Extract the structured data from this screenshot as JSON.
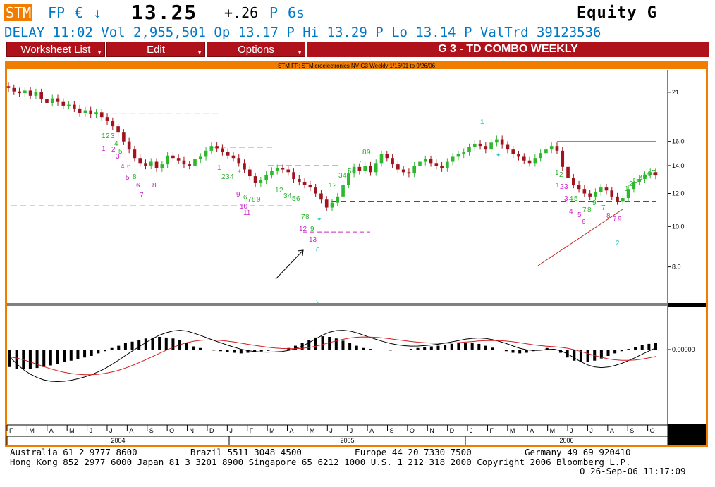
{
  "header": {
    "ticker": "STM",
    "exchange": "FP",
    "currency": "€",
    "arrow": "↓",
    "price": "13.25",
    "change": "+.26",
    "change_flag": "P",
    "lot": "6s",
    "security_type": "Equity",
    "function_key": "G"
  },
  "quote_line": "DELAY 11:02 Vol 2,955,501 Op 13.17 P Hi 13.29 P Lo 13.14 P ValTrd 39123536",
  "menu": {
    "worksheet_list": "Worksheet List",
    "edit": "Edit",
    "options": "Options",
    "title": "G  3 - TD COMBO WEEKLY"
  },
  "chart_title": "STM FP: STMicroelectronics NV G3 Weekly 1/16/01 to 9/26/06",
  "colors": {
    "accent": "#f07c00",
    "menu": "#b0121b",
    "blue_text": "#0078c8",
    "up_candle": "#2db82d",
    "down_candle": "#a0141e",
    "count_green": "#28b428",
    "count_magenta": "#c828c8",
    "count_cyan": "#28c8c8"
  },
  "footer": {
    "line1": "Australia 61 2 9777 8600          Brazil 5511 3048 4500          Europe 44 20 7330 7500          Germany 49 69 920410",
    "line2": "Hong Kong 852 2977 6000 Japan 81 3 3201 8900 Singapore 65 6212 1000 U.S. 1 212 318 2000 Copyright 2006 Bloomberg L.P.",
    "line3": "0 26-Sep-06 11:17:09"
  },
  "chart_data": {
    "type": "candlestick",
    "price_axis": {
      "ticks": [
        "21",
        "16.0",
        "14.0",
        "12.0",
        "10.0",
        "8.0"
      ],
      "tick_values": [
        21,
        16,
        14,
        12,
        10,
        8
      ],
      "scale": "log"
    },
    "osc_axis": {
      "ticks": [
        "0.00000"
      ],
      "tick_values": [
        0
      ]
    },
    "x_months": [
      "F",
      "M",
      "A",
      "M",
      "J",
      "J",
      "A",
      "S",
      "O",
      "N",
      "D",
      "J",
      "F",
      "M",
      "A",
      "M",
      "J",
      "J",
      "A",
      "S",
      "O",
      "N",
      "D",
      "J",
      "F",
      "M",
      "A",
      "M",
      "J",
      "J",
      "A",
      "S",
      "O"
    ],
    "x_years": [
      "2004",
      "2005",
      "2006"
    ],
    "weekly_close": [
      21.5,
      21.1,
      20.9,
      21.2,
      20.6,
      21.0,
      20.2,
      19.8,
      20.3,
      19.9,
      19.5,
      19.6,
      19.2,
      18.7,
      19.0,
      18.6,
      18.8,
      18.3,
      17.9,
      17.4,
      16.8,
      16.0,
      15.3,
      14.6,
      14.2,
      14.0,
      14.3,
      13.8,
      14.1,
      14.8,
      14.6,
      14.4,
      14.1,
      14.0,
      14.5,
      14.7,
      15.2,
      15.6,
      15.4,
      15.1,
      14.8,
      14.6,
      14.2,
      13.7,
      13.2,
      12.7,
      12.9,
      13.3,
      13.6,
      13.8,
      13.7,
      13.5,
      13.0,
      12.8,
      12.6,
      12.4,
      12.0,
      11.6,
      11.1,
      11.4,
      11.8,
      12.6,
      13.4,
      13.9,
      13.6,
      14.0,
      13.5,
      14.2,
      14.9,
      14.6,
      14.1,
      13.7,
      13.5,
      13.4,
      14.0,
      14.3,
      14.5,
      14.2,
      14.0,
      13.8,
      14.3,
      14.7,
      14.9,
      15.1,
      15.5,
      15.8,
      15.6,
      15.3,
      15.9,
      16.2,
      15.7,
      15.3,
      14.9,
      14.7,
      14.4,
      14.2,
      14.6,
      15.0,
      15.3,
      15.6,
      15.2,
      13.9,
      13.1,
      12.6,
      12.3,
      12.0,
      11.8,
      12.1,
      12.4,
      12.2,
      11.8,
      11.5,
      11.7,
      12.3,
      12.8,
      13.0,
      13.3,
      13.5,
      13.25
    ],
    "support_levels": [
      {
        "value": 11.2,
        "color": "#c81e1e",
        "style": "dashed"
      },
      {
        "value": 11.5,
        "color": "#c81e1e",
        "style": "dashed"
      }
    ],
    "resistance_levels": [
      {
        "value": 18.7,
        "color": "#28b428",
        "style": "dashed"
      },
      {
        "value": 15.5,
        "color": "#28b428",
        "style": "dashed"
      },
      {
        "value": 14.0,
        "color": "#28b428",
        "style": "dashed"
      },
      {
        "value": 16.0,
        "color": "#28b428",
        "style": "solid"
      }
    ],
    "macd_histogram": [
      -0.55,
      -0.6,
      -0.62,
      -0.6,
      -0.58,
      -0.55,
      -0.5,
      -0.45,
      -0.4,
      -0.35,
      -0.3,
      -0.25,
      -0.2,
      -0.12,
      -0.05,
      0.05,
      0.12,
      0.2,
      0.25,
      0.3,
      0.35,
      0.38,
      0.4,
      0.38,
      0.35,
      0.3,
      0.2,
      0.1,
      0.05,
      0.0,
      -0.03,
      -0.05,
      -0.08,
      -0.1,
      -0.12,
      -0.1,
      -0.08,
      -0.06,
      -0.04,
      -0.02,
      0.0,
      0.05,
      0.12,
      0.2,
      0.3,
      0.38,
      0.42,
      0.4,
      0.35,
      0.28,
      0.2,
      0.12,
      0.05,
      0.02,
      0.0,
      -0.02,
      -0.03,
      -0.02,
      0.0,
      0.02,
      0.05,
      0.08,
      0.1,
      0.12,
      0.15,
      0.18,
      0.2,
      0.22,
      0.2,
      0.18,
      0.12,
      0.06,
      0.0,
      -0.05,
      -0.1,
      -0.12,
      -0.1,
      -0.05,
      0.0,
      0.05,
      0.02,
      -0.1,
      -0.25,
      -0.35,
      -0.4,
      -0.4,
      -0.35,
      -0.28,
      -0.2,
      -0.12,
      -0.05,
      0.02,
      0.08,
      0.14,
      0.18,
      0.2
    ],
    "macd_line_color": "#000000",
    "signal_line_color": "#d21e1e"
  }
}
